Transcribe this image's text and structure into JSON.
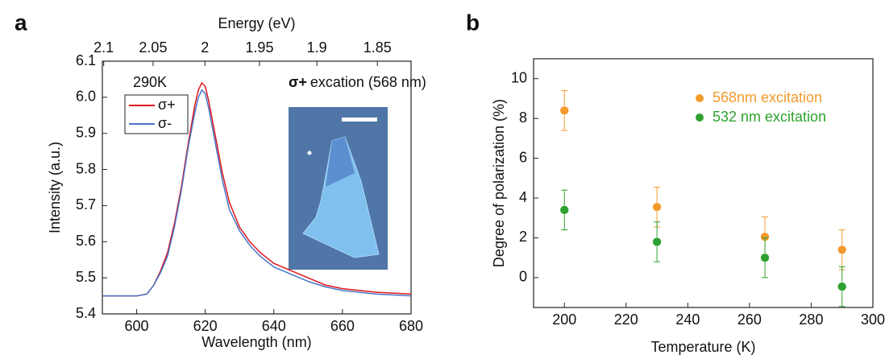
{
  "chart_data": [
    {
      "type": "line",
      "panel_label": "a",
      "xlabel": "Wavelength (nm)",
      "ylabel": "Intensity (a.u.)",
      "x2label": "Energy (eV)",
      "annotations": [
        "290K",
        "σ+",
        "excation (568 nm)"
      ],
      "x": [
        590,
        595,
        600,
        603,
        605,
        607,
        609,
        611,
        613,
        615,
        617,
        618,
        619,
        620,
        621,
        623,
        625,
        627,
        630,
        633,
        636,
        640,
        645,
        650,
        655,
        660,
        670,
        680
      ],
      "series": [
        {
          "name": "σ+",
          "color": "#e0161e",
          "values": [
            5.45,
            5.45,
            5.45,
            5.455,
            5.48,
            5.52,
            5.57,
            5.65,
            5.75,
            5.87,
            5.98,
            6.02,
            6.04,
            6.03,
            5.99,
            5.89,
            5.79,
            5.71,
            5.64,
            5.6,
            5.57,
            5.54,
            5.52,
            5.5,
            5.48,
            5.47,
            5.46,
            5.455
          ]
        },
        {
          "name": "σ-",
          "color": "#4a74c9",
          "values": [
            5.45,
            5.45,
            5.45,
            5.455,
            5.48,
            5.515,
            5.56,
            5.64,
            5.74,
            5.86,
            5.96,
            6.0,
            6.02,
            6.01,
            5.97,
            5.87,
            5.77,
            5.69,
            5.63,
            5.59,
            5.56,
            5.53,
            5.51,
            5.49,
            5.475,
            5.465,
            5.455,
            5.45
          ]
        }
      ],
      "xlim": [
        590,
        680
      ],
      "xticks": [
        600,
        620,
        640,
        660,
        680
      ],
      "ylim": [
        5.4,
        6.1
      ],
      "yticks": [
        5.4,
        5.5,
        5.6,
        5.7,
        5.8,
        5.9,
        {
          "value": 6,
          "label": "6.0"
        },
        6.1
      ],
      "x2lim": [
        2.1014,
        1.8233
      ],
      "x2ticks": [
        2.1,
        2.05,
        2,
        1.95,
        1.9,
        1.85
      ],
      "legend": "upper-left"
    },
    {
      "type": "scatter",
      "panel_label": "b",
      "xlabel": "Temperature (K)",
      "ylabel": "Degree of polarization (%)",
      "x": [
        200,
        230,
        265,
        290
      ],
      "series": [
        {
          "name": "568nm excitation",
          "color": "#f39a2e",
          "values": [
            8.4,
            3.55,
            2.05,
            1.4
          ],
          "errors": [
            1.0,
            1.0,
            1.0,
            1.0
          ]
        },
        {
          "name": "532 nm excitation",
          "color": "#2ea22e",
          "values": [
            3.4,
            1.8,
            1.0,
            -0.45
          ],
          "errors": [
            1.0,
            1.0,
            1.0,
            1.0
          ]
        }
      ],
      "xlim": [
        190,
        300
      ],
      "xticks": [
        200,
        220,
        240,
        260,
        280,
        300
      ],
      "ylim": [
        -1.5,
        11
      ],
      "yticks": [
        0,
        2,
        4,
        6,
        8,
        10
      ],
      "legend": "upper-right"
    }
  ]
}
